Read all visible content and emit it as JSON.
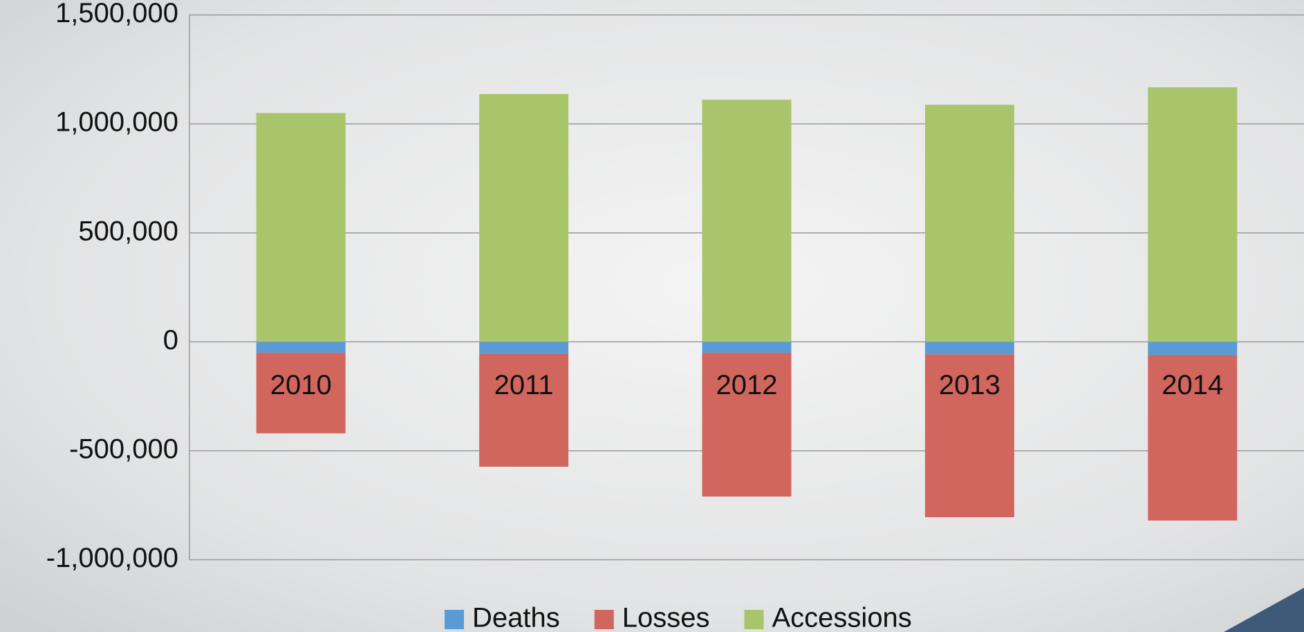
{
  "chart_data": {
    "type": "stacked_bar",
    "categories": [
      "2010",
      "2011",
      "2012",
      "2013",
      "2014"
    ],
    "series": [
      {
        "name": "Deaths",
        "color": "#5b9bd5",
        "values": [
          -50000,
          -55000,
          -50000,
          -57000,
          -61000
        ]
      },
      {
        "name": "Losses",
        "color": "#d0665e",
        "values": [
          -370000,
          -518000,
          -660000,
          -748000,
          -759000
        ]
      },
      {
        "name": "Accessions",
        "color": "#a9c56b",
        "values": [
          1050000,
          1137000,
          1111000,
          1088000,
          1168000
        ]
      }
    ],
    "ylim": [
      -1000000,
      1500000
    ],
    "yticks": [
      {
        "value": -1000000,
        "label": "-1,000,000"
      },
      {
        "value": -500000,
        "label": "-500,000"
      },
      0,
      {
        "value": 500000,
        "label": "500,000"
      },
      {
        "value": 1000000,
        "label": "1,000,000"
      },
      {
        "value": 1500000,
        "label": "1,500,000"
      }
    ],
    "grid": true,
    "legend": "bottom"
  }
}
